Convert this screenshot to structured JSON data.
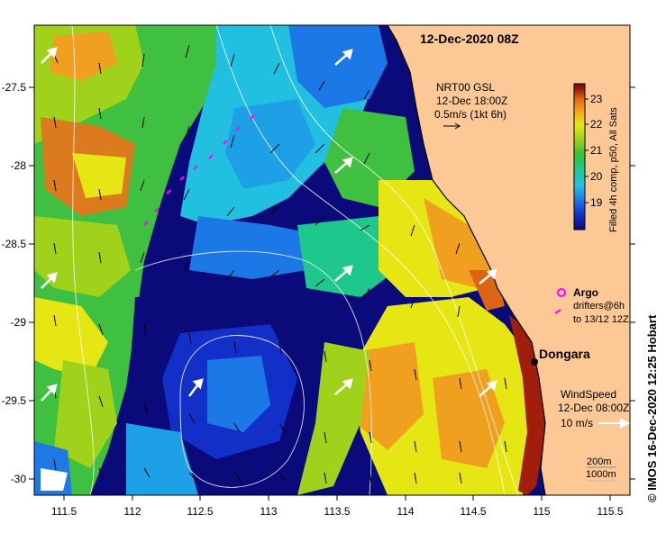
{
  "map": {
    "title": "12-Dec-2020 08Z",
    "current_block": {
      "line1": "NRT00 GSL",
      "line2": "12-Dec 18:00Z",
      "line3": "0.5m/s (1kt 6h)"
    },
    "colorbar": {
      "label": "Filled 4h comp, p50, All Sats",
      "ticks": [
        "23",
        "22",
        "21",
        "20",
        "19"
      ],
      "colors": [
        "#0a0a7a",
        "#1230c8",
        "#1c78e6",
        "#22c0e0",
        "#1ec88c",
        "#38c030",
        "#a0d21c",
        "#e6e614",
        "#f0a01e",
        "#dc6414",
        "#a01e0a",
        "#6e0a05"
      ]
    },
    "legend": {
      "argo": "Argo",
      "drifters_line1": "drifters@6h",
      "drifters_line2": "to 13/12 12Z"
    },
    "place": "Dongara",
    "wind": {
      "line1": "WindSpeed",
      "line2": "12-Dec 08:00Z",
      "line3": "10 m/s"
    },
    "isobaths": {
      "line1": "200m",
      "line2": "1000m"
    },
    "credit": "© IMOS 16-Dec-2020 12:25 Hobart",
    "x_ticks": [
      "111.5",
      "112",
      "112.5",
      "113",
      "113.5",
      "114",
      "114.5",
      "115",
      "115.5"
    ],
    "y_ticks": [
      "-27.5",
      "-28",
      "-28.5",
      "-29",
      "-29.5",
      "-30"
    ],
    "land_color": "#fcc896",
    "argo_color": "#ff00ff"
  }
}
